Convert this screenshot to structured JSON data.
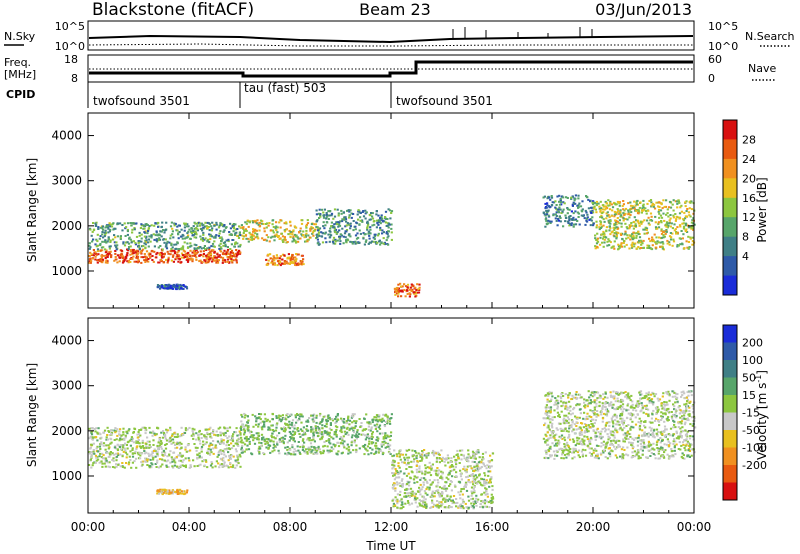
{
  "header": {
    "station": "Blackstone (fitACF)",
    "beam": "Beam 23",
    "date": "03/Jun/2013"
  },
  "noise_panel": {
    "left_label": "N.Sky",
    "right_label": "N.Search",
    "left_ticks": [
      "10^5",
      "10^0"
    ],
    "right_ticks": [
      "10^5",
      "10^0"
    ]
  },
  "freq_panel": {
    "left_label_1": "Freq.",
    "left_label_2": "[MHz]",
    "left_ticks": [
      "18",
      "8"
    ],
    "right_label": "Nave",
    "right_ticks": [
      "60",
      "0"
    ]
  },
  "cpid": {
    "label": "CPID",
    "segments": [
      {
        "name": "twofsound 3501",
        "start_hour": 0,
        "end_hour": 6
      },
      {
        "name": "tau (fast) 503",
        "start_hour": 6,
        "end_hour": 12
      },
      {
        "name": "twofsound 3501",
        "start_hour": 12,
        "end_hour": 24
      }
    ]
  },
  "chart_data": [
    {
      "type": "heatmap",
      "parameter": "power",
      "ylabel": "Slant Range [km]",
      "yticks": [
        "4000",
        "3000",
        "2000",
        "1000"
      ],
      "ylim": [
        180,
        4500
      ],
      "colorbar_label": "Power [dB]",
      "colorbar_ticks": [
        "28",
        "24",
        "20",
        "16",
        "12",
        "8",
        "4"
      ],
      "colorbar_range": [
        0,
        32
      ],
      "colors": [
        "#1a2cd8",
        "#2e5aa8",
        "#3f7f86",
        "#57a56a",
        "#8cc63f",
        "#e8c020",
        "#f09020",
        "#e85a10",
        "#d81010"
      ],
      "echo_regions": [
        {
          "t0": 0.0,
          "t1": 6.0,
          "r0": 1200,
          "r1": 1500,
          "level": 27
        },
        {
          "t0": 0.0,
          "t1": 6.0,
          "r0": 1500,
          "r1": 2100,
          "level": 12
        },
        {
          "t0": 2.7,
          "t1": 3.9,
          "r0": 620,
          "r1": 720,
          "level": 5
        },
        {
          "t0": 6.0,
          "t1": 9.0,
          "r0": 1650,
          "r1": 2150,
          "level": 18
        },
        {
          "t0": 7.0,
          "t1": 8.5,
          "r0": 1150,
          "r1": 1400,
          "level": 24
        },
        {
          "t0": 9.0,
          "t1": 12.0,
          "r0": 1600,
          "r1": 2400,
          "level": 10
        },
        {
          "t0": 12.1,
          "t1": 13.1,
          "r0": 450,
          "r1": 750,
          "level": 26
        },
        {
          "t0": 18.0,
          "t1": 20.0,
          "r0": 2000,
          "r1": 2700,
          "level": 9
        },
        {
          "t0": 20.0,
          "t1": 24.0,
          "r0": 1500,
          "r1": 2600,
          "level": 17
        }
      ]
    },
    {
      "type": "heatmap",
      "parameter": "velocity",
      "ylabel": "Slant Range [km]",
      "yticks": [
        "4000",
        "3000",
        "2000",
        "1000"
      ],
      "ylim": [
        180,
        4500
      ],
      "colorbar_label": "Velocity [m s^-1]",
      "colorbar_ticks": [
        "200",
        "100",
        "50",
        "15",
        "-15",
        "-50",
        "-100",
        "-200"
      ],
      "colorbar_range": [
        -250,
        250
      ],
      "colors": [
        "#1a2cd8",
        "#2e5aa8",
        "#3f7f86",
        "#57a56a",
        "#8cc63f",
        "#c8c8c8",
        "#e8c020",
        "#f09020",
        "#e85a10",
        "#d81010"
      ],
      "echo_regions": [
        {
          "t0": 0.0,
          "t1": 6.0,
          "r0": 1200,
          "r1": 2100,
          "level": 0
        },
        {
          "t0": 2.7,
          "t1": 3.9,
          "r0": 620,
          "r1": 720,
          "level": -80
        },
        {
          "t0": 6.0,
          "t1": 12.0,
          "r0": 1500,
          "r1": 2400,
          "level": 40
        },
        {
          "t0": 12.0,
          "t1": 16.0,
          "r0": 300,
          "r1": 1600,
          "level": 0
        },
        {
          "t0": 18.0,
          "t1": 24.0,
          "r0": 1400,
          "r1": 2900,
          "level": 0
        }
      ]
    }
  ],
  "time_axis": {
    "ticks": [
      "00:00",
      "04:00",
      "08:00",
      "12:00",
      "16:00",
      "20:00",
      "00:00"
    ],
    "label": "Time UT",
    "range_hours": [
      0,
      24
    ]
  }
}
